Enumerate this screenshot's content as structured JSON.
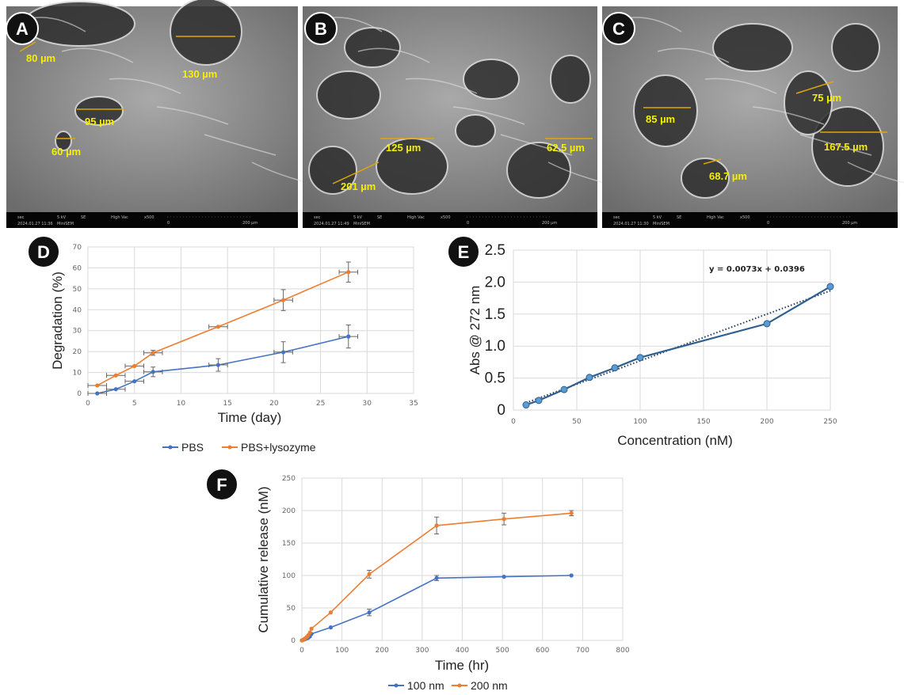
{
  "panels": {
    "A": "A",
    "B": "B",
    "C": "C",
    "D": "D",
    "E": "E",
    "F": "F"
  },
  "sem_images": [
    {
      "panel": "A",
      "labels": [
        "80 µm",
        "130 µm",
        "95 µm",
        "60 µm"
      ],
      "footer": {
        "mode": "sec",
        "kv": "5 kV",
        "det": "SE",
        "vac": "High Vac",
        "mag": "x500",
        "date": "2024.01.27 11:36",
        "name": "MiniSEM",
        "scale_start": "0",
        "scale_end": "200 µm"
      }
    },
    {
      "panel": "B",
      "labels": [
        "125 µm",
        "62.5 µm",
        "201 µm"
      ],
      "footer": {
        "mode": "sec",
        "kv": "5 kV",
        "det": "SE",
        "vac": "High Vac",
        "mag": "x500",
        "date": "2024.01.27 11:49",
        "name": "MiniSEM",
        "scale_start": "0",
        "scale_end": "200 µm"
      }
    },
    {
      "panel": "C",
      "labels": [
        "85 µm",
        "75 µm",
        "167.5 µm",
        "68.7 µm"
      ],
      "footer": {
        "mode": "sec",
        "kv": "5 kV",
        "det": "SE",
        "vac": "High Vac",
        "mag": "x500",
        "date": "2024.01.27 11:30",
        "name": "MiniSEM",
        "scale_start": "0",
        "scale_end": "200 µm"
      }
    }
  ],
  "label_color": "#f4f000",
  "chart_data": [
    {
      "panel": "D",
      "type": "line",
      "xlabel": "Time (day)",
      "ylabel": "Degradation (%)",
      "xlim": [
        0,
        35
      ],
      "ylim": [
        0,
        70
      ],
      "xticks": [
        0,
        5,
        10,
        15,
        20,
        25,
        30,
        35
      ],
      "yticks": [
        0,
        10,
        20,
        30,
        40,
        50,
        60,
        70
      ],
      "grid": true,
      "legend": "bottom",
      "series": [
        {
          "name": "PBS",
          "color": "#4472c4",
          "x": [
            1,
            3,
            5,
            7,
            14,
            21,
            28
          ],
          "y": [
            0,
            2,
            5.8,
            10.3,
            13.6,
            19.7,
            27.2
          ],
          "yerr": [
            0,
            0,
            0,
            2.3,
            3,
            5,
            5.5
          ],
          "xerr": [
            1,
            1,
            1,
            1,
            1,
            1,
            1
          ]
        },
        {
          "name": "PBS+lysozyme",
          "color": "#ed7d31",
          "x": [
            1,
            3,
            5,
            7,
            14,
            21,
            28
          ],
          "y": [
            3.8,
            8.6,
            13.1,
            19.4,
            31.9,
            44.6,
            58
          ],
          "yerr": [
            0,
            0,
            0,
            1.2,
            0,
            5,
            4.8
          ],
          "xerr": [
            1,
            1,
            1,
            1,
            1,
            1,
            1
          ]
        }
      ]
    },
    {
      "panel": "E",
      "type": "line",
      "xlabel": "Concentration (nM)",
      "ylabel": "Abs @ 272 nm",
      "xlim": [
        0,
        250
      ],
      "ylim": [
        0,
        2.5
      ],
      "xticks": [
        0,
        50,
        100,
        150,
        200,
        250
      ],
      "yticks": [
        "0",
        "0.5",
        "1.0",
        "1.5",
        "2.0",
        "2.5"
      ],
      "grid": true,
      "legend": "none",
      "series": [
        {
          "color": "#2e5f8f",
          "marker": "#5b9bd5",
          "x": [
            10,
            20,
            40,
            60,
            80,
            100,
            200,
            250
          ],
          "y": [
            0.08,
            0.15,
            0.32,
            0.51,
            0.66,
            0.82,
            1.35,
            1.93
          ]
        }
      ],
      "trendline": {
        "slope": 0.0073,
        "intercept": 0.0396,
        "label": "y = 0.0073x + 0.0396",
        "color": "#1f3b5c"
      }
    },
    {
      "panel": "F",
      "type": "line",
      "xlabel": "Time (hr)",
      "ylabel": "Cumulative release (nM)",
      "xlim": [
        0,
        800
      ],
      "ylim": [
        0,
        250
      ],
      "xticks": [
        0,
        100,
        200,
        300,
        400,
        500,
        600,
        700,
        800
      ],
      "yticks": [
        0,
        50,
        100,
        150,
        200,
        250
      ],
      "grid": true,
      "legend": "bottom",
      "series": [
        {
          "name": "100 nm",
          "color": "#4472c4",
          "x": [
            0,
            2,
            4,
            6,
            8,
            12,
            16,
            20,
            24,
            72,
            168,
            336,
            504,
            672
          ],
          "y": [
            0,
            0.5,
            1,
            1.5,
            2,
            3,
            4,
            6,
            10,
            20,
            43,
            96,
            98,
            100
          ],
          "yerr": [
            0,
            0,
            0,
            0,
            0,
            0,
            0,
            0,
            0,
            0,
            5,
            4,
            0,
            0
          ]
        },
        {
          "name": "200 nm",
          "color": "#ed7d31",
          "x": [
            0,
            2,
            4,
            6,
            8,
            12,
            16,
            20,
            24,
            72,
            168,
            336,
            504,
            672
          ],
          "y": [
            0,
            0.5,
            1,
            2,
            3,
            5,
            8,
            12,
            18,
            43,
            102,
            177,
            187,
            196
          ],
          "yerr": [
            0,
            0,
            0,
            0,
            0,
            0,
            0,
            0,
            0,
            0,
            6,
            13,
            9,
            4
          ]
        }
      ]
    }
  ]
}
